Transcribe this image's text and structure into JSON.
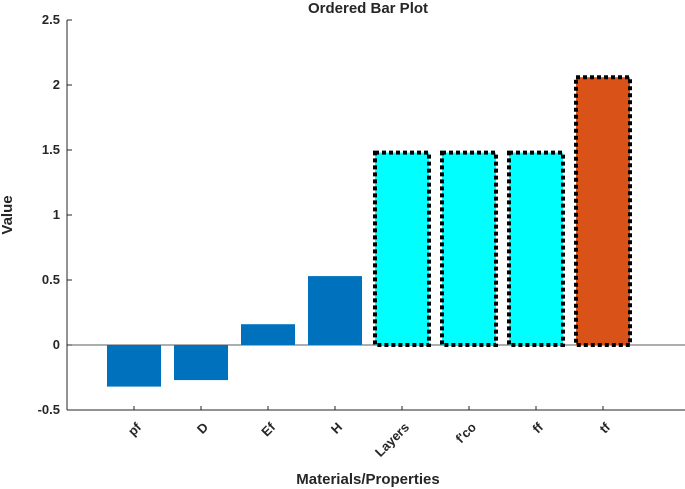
{
  "chart_data": {
    "type": "bar",
    "title": "Ordered Bar Plot",
    "xlabel": "Materials/Properties",
    "ylabel": "Value",
    "categories": [
      "pf",
      "D",
      "Ef",
      "H",
      "Layers",
      "f'co",
      "ff",
      "tf"
    ],
    "values": [
      -0.32,
      -0.27,
      0.16,
      0.53,
      1.48,
      1.48,
      1.48,
      2.06
    ],
    "ylim": [
      -0.5,
      2.5
    ],
    "yticks": [
      -0.5,
      0,
      0.5,
      1,
      1.5,
      2,
      2.5
    ],
    "ytick_labels": [
      "-0.5",
      "0",
      "0.5",
      "1",
      "1.5",
      "2",
      "2.5"
    ],
    "bar_colors": [
      "#0072BD",
      "#0072BD",
      "#0072BD",
      "#0072BD",
      "#00FFFF",
      "#00FFFF",
      "#00FFFF",
      "#D95319"
    ],
    "highlighted_dotted_outline": [
      false,
      false,
      false,
      false,
      true,
      true,
      true,
      true
    ],
    "grid": false,
    "x_tick_rotation_deg": -45
  }
}
